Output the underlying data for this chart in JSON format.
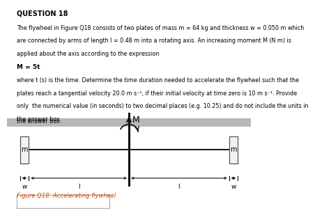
{
  "title": "QUESTION 18",
  "line1": "The flywheel in Figure Q18 consists of two plates of mass m = 64 kg and thickness w = 0.050 m which",
  "line2": "are connected by arms of length l = 0.48 m into a rotating axis. An increasing moment M (N m) is",
  "line3": "applied about the axis according to the expression",
  "line4": "M = 5t",
  "line5": "where t (s) is the time. Determine the time duration needed to accelerate the flywheel such that the",
  "line6": "plates reach a tangential velocity 20.0 m s⁻¹, if their initial velocity at time zero is 10 m s⁻¹. Provide",
  "line7": "only  the numerical value (in seconds) to two decimal places (e.g. 10.25) and do not include the units in",
  "line8": "the answer box.",
  "figure_caption": "Figure Q18: Accelerating flywheel",
  "bg_color": "#ffffff",
  "plate_color": "#f2f2f2",
  "plate_edge_color": "#555555",
  "axis_color": "#111111",
  "text_color": "#000000",
  "caption_color": "#cc4400",
  "grey_bar_color": "#b8b8b8",
  "title_fontsize": 7.0,
  "body_fontsize": 5.8,
  "eq_fontsize": 6.5
}
